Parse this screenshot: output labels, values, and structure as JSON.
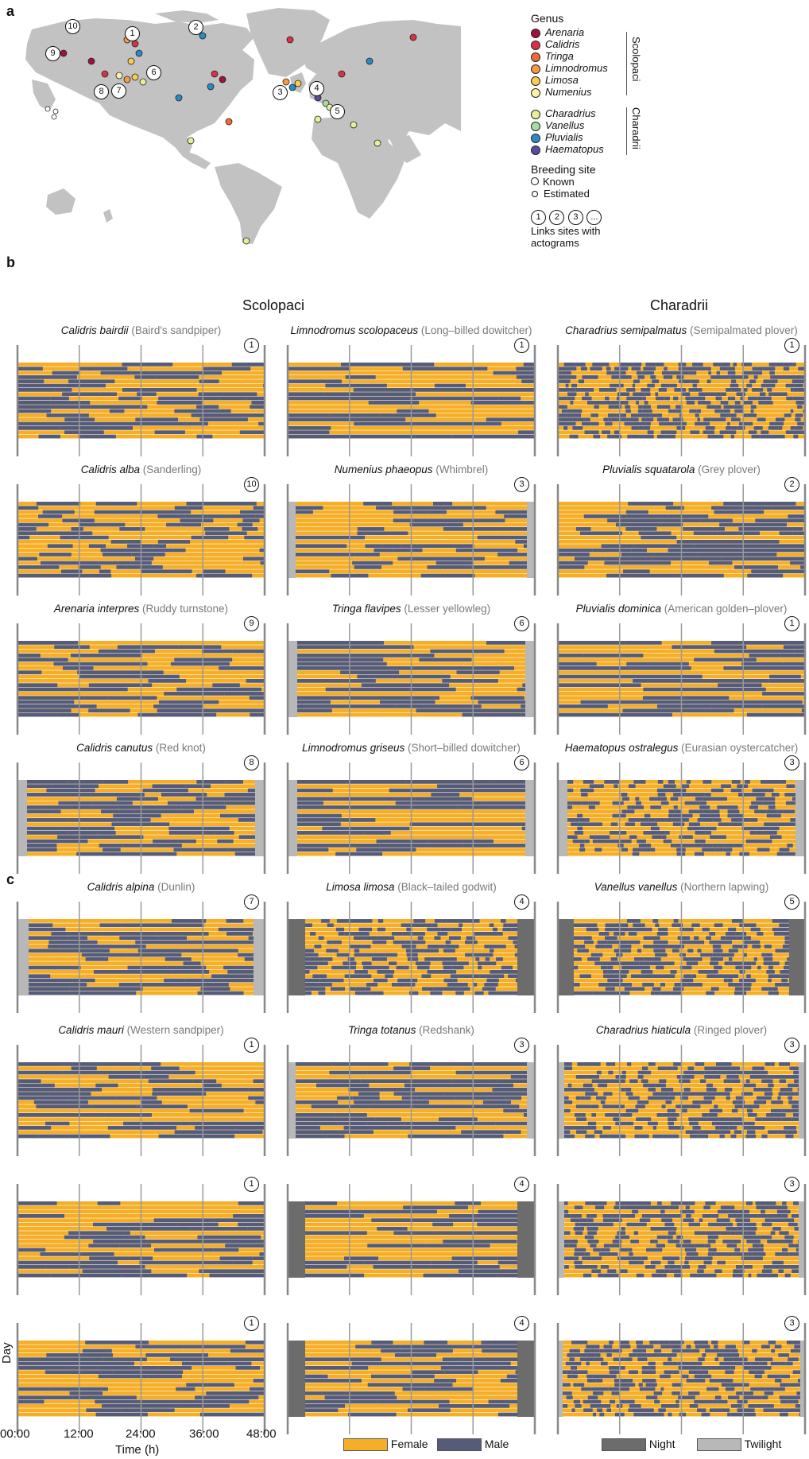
{
  "panel_labels": {
    "a": "a",
    "b": "b",
    "c": "c"
  },
  "map": {
    "land_color": "#c2c2c2",
    "sites": [
      "1",
      "2",
      "3",
      "4",
      "5",
      "6",
      "7",
      "8",
      "9",
      "10"
    ]
  },
  "legend": {
    "genus_title": "Genus",
    "scolopaci_label": "Scolopaci",
    "charadrii_label": "Charadrii",
    "scolopaci": [
      {
        "name": "Arenaria",
        "color": "#a0123a"
      },
      {
        "name": "Calidris",
        "color": "#d93248"
      },
      {
        "name": "Tringa",
        "color": "#f06b38"
      },
      {
        "name": "Limnodromus",
        "color": "#f59a45"
      },
      {
        "name": "Limosa",
        "color": "#f7cf50"
      },
      {
        "name": "Numenius",
        "color": "#fbf2a8"
      }
    ],
    "charadrii": [
      {
        "name": "Charadrius",
        "color": "#e6f09a"
      },
      {
        "name": "Vanellus",
        "color": "#a8dca2"
      },
      {
        "name": "Pluvialis",
        "color": "#2b8ac4"
      },
      {
        "name": "Haematopus",
        "color": "#5c4a9c"
      }
    ],
    "breeding_title": "Breeding site",
    "known": "Known",
    "estimated": "Estimated",
    "links_nums": [
      "1",
      "2",
      "3",
      "..."
    ],
    "links_line1": "Links sites with",
    "links_line2": "actograms"
  },
  "columns": {
    "scolopaci": "Scolopaci",
    "charadrii": "Charadrii"
  },
  "panels_b": [
    {
      "genus": "Calidris bairdii",
      "common": "(Baird's sandpiper)",
      "site": "1"
    },
    {
      "genus": "Limnodromus scolopaceus",
      "common": "(Long–billed dowitcher)",
      "site": "1"
    },
    {
      "genus": "Charadrius semipalmatus",
      "common": "(Semipalmated plover)",
      "site": "1"
    },
    {
      "genus": "Calidris alba",
      "common": "(Sanderling)",
      "site": "10"
    },
    {
      "genus": "Numenius phaeopus",
      "common": "(Whimbrel)",
      "site": "3"
    },
    {
      "genus": "Pluvialis squatarola",
      "common": "(Grey plover)",
      "site": "2"
    },
    {
      "genus": "Arenaria interpres",
      "common": "(Ruddy turnstone)",
      "site": "9"
    },
    {
      "genus": "Tringa flavipes",
      "common": "(Lesser yellowleg)",
      "site": "6"
    },
    {
      "genus": "Pluvialis dominica",
      "common": "(American golden–plover)",
      "site": "1"
    },
    {
      "genus": "Calidris canutus",
      "common": "(Red knot)",
      "site": "8"
    },
    {
      "genus": "Limnodromus griseus",
      "common": "(Short–billed dowitcher)",
      "site": "6"
    },
    {
      "genus": "Haematopus ostralegus",
      "common": "(Eurasian oystercatcher)",
      "site": "3"
    },
    {
      "genus": "Calidris alpina",
      "common": "(Dunlin)",
      "site": "7"
    },
    {
      "genus": "Limosa limosa",
      "common": "(Black–tailed godwit)",
      "site": "4"
    },
    {
      "genus": "Vanellus vanellus",
      "common": "(Northern lapwing)",
      "site": "5"
    }
  ],
  "panels_c": [
    {
      "genus": "Calidris mauri",
      "common": "(Western sandpiper)",
      "site": "1"
    },
    {
      "genus": "Tringa totanus",
      "common": "(Redshank)",
      "site": "3"
    },
    {
      "genus": "Charadrius hiaticula",
      "common": "(Ringed plover)",
      "site": "3"
    },
    {
      "genus": "",
      "common": "",
      "site": "1"
    },
    {
      "genus": "",
      "common": "",
      "site": "4"
    },
    {
      "genus": "",
      "common": "",
      "site": "3"
    },
    {
      "genus": "",
      "common": "",
      "site": "1"
    },
    {
      "genus": "",
      "common": "",
      "site": "4"
    },
    {
      "genus": "",
      "common": "",
      "site": "3"
    }
  ],
  "chart_data": {
    "type": "heatmap",
    "description_type": "actogram",
    "x_ticks": [
      "00:00",
      "12:00",
      "24:00",
      "36:00",
      "48:00"
    ],
    "xlabel": "Time (h)",
    "ylabel": "Day",
    "xlim": [
      0,
      48
    ],
    "colors": {
      "female": "#f5ae25",
      "male": "#555c7a",
      "night": "#6c6c6c",
      "twilight": "#b8b8b8"
    },
    "legend": [
      {
        "name": "Female",
        "color": "#f5ae25"
      },
      {
        "name": "Male",
        "color": "#555c7a"
      },
      {
        "name": "Night",
        "color": "#6c6c6c"
      },
      {
        "name": "Twilight",
        "color": "#b8b8b8"
      }
    ]
  }
}
